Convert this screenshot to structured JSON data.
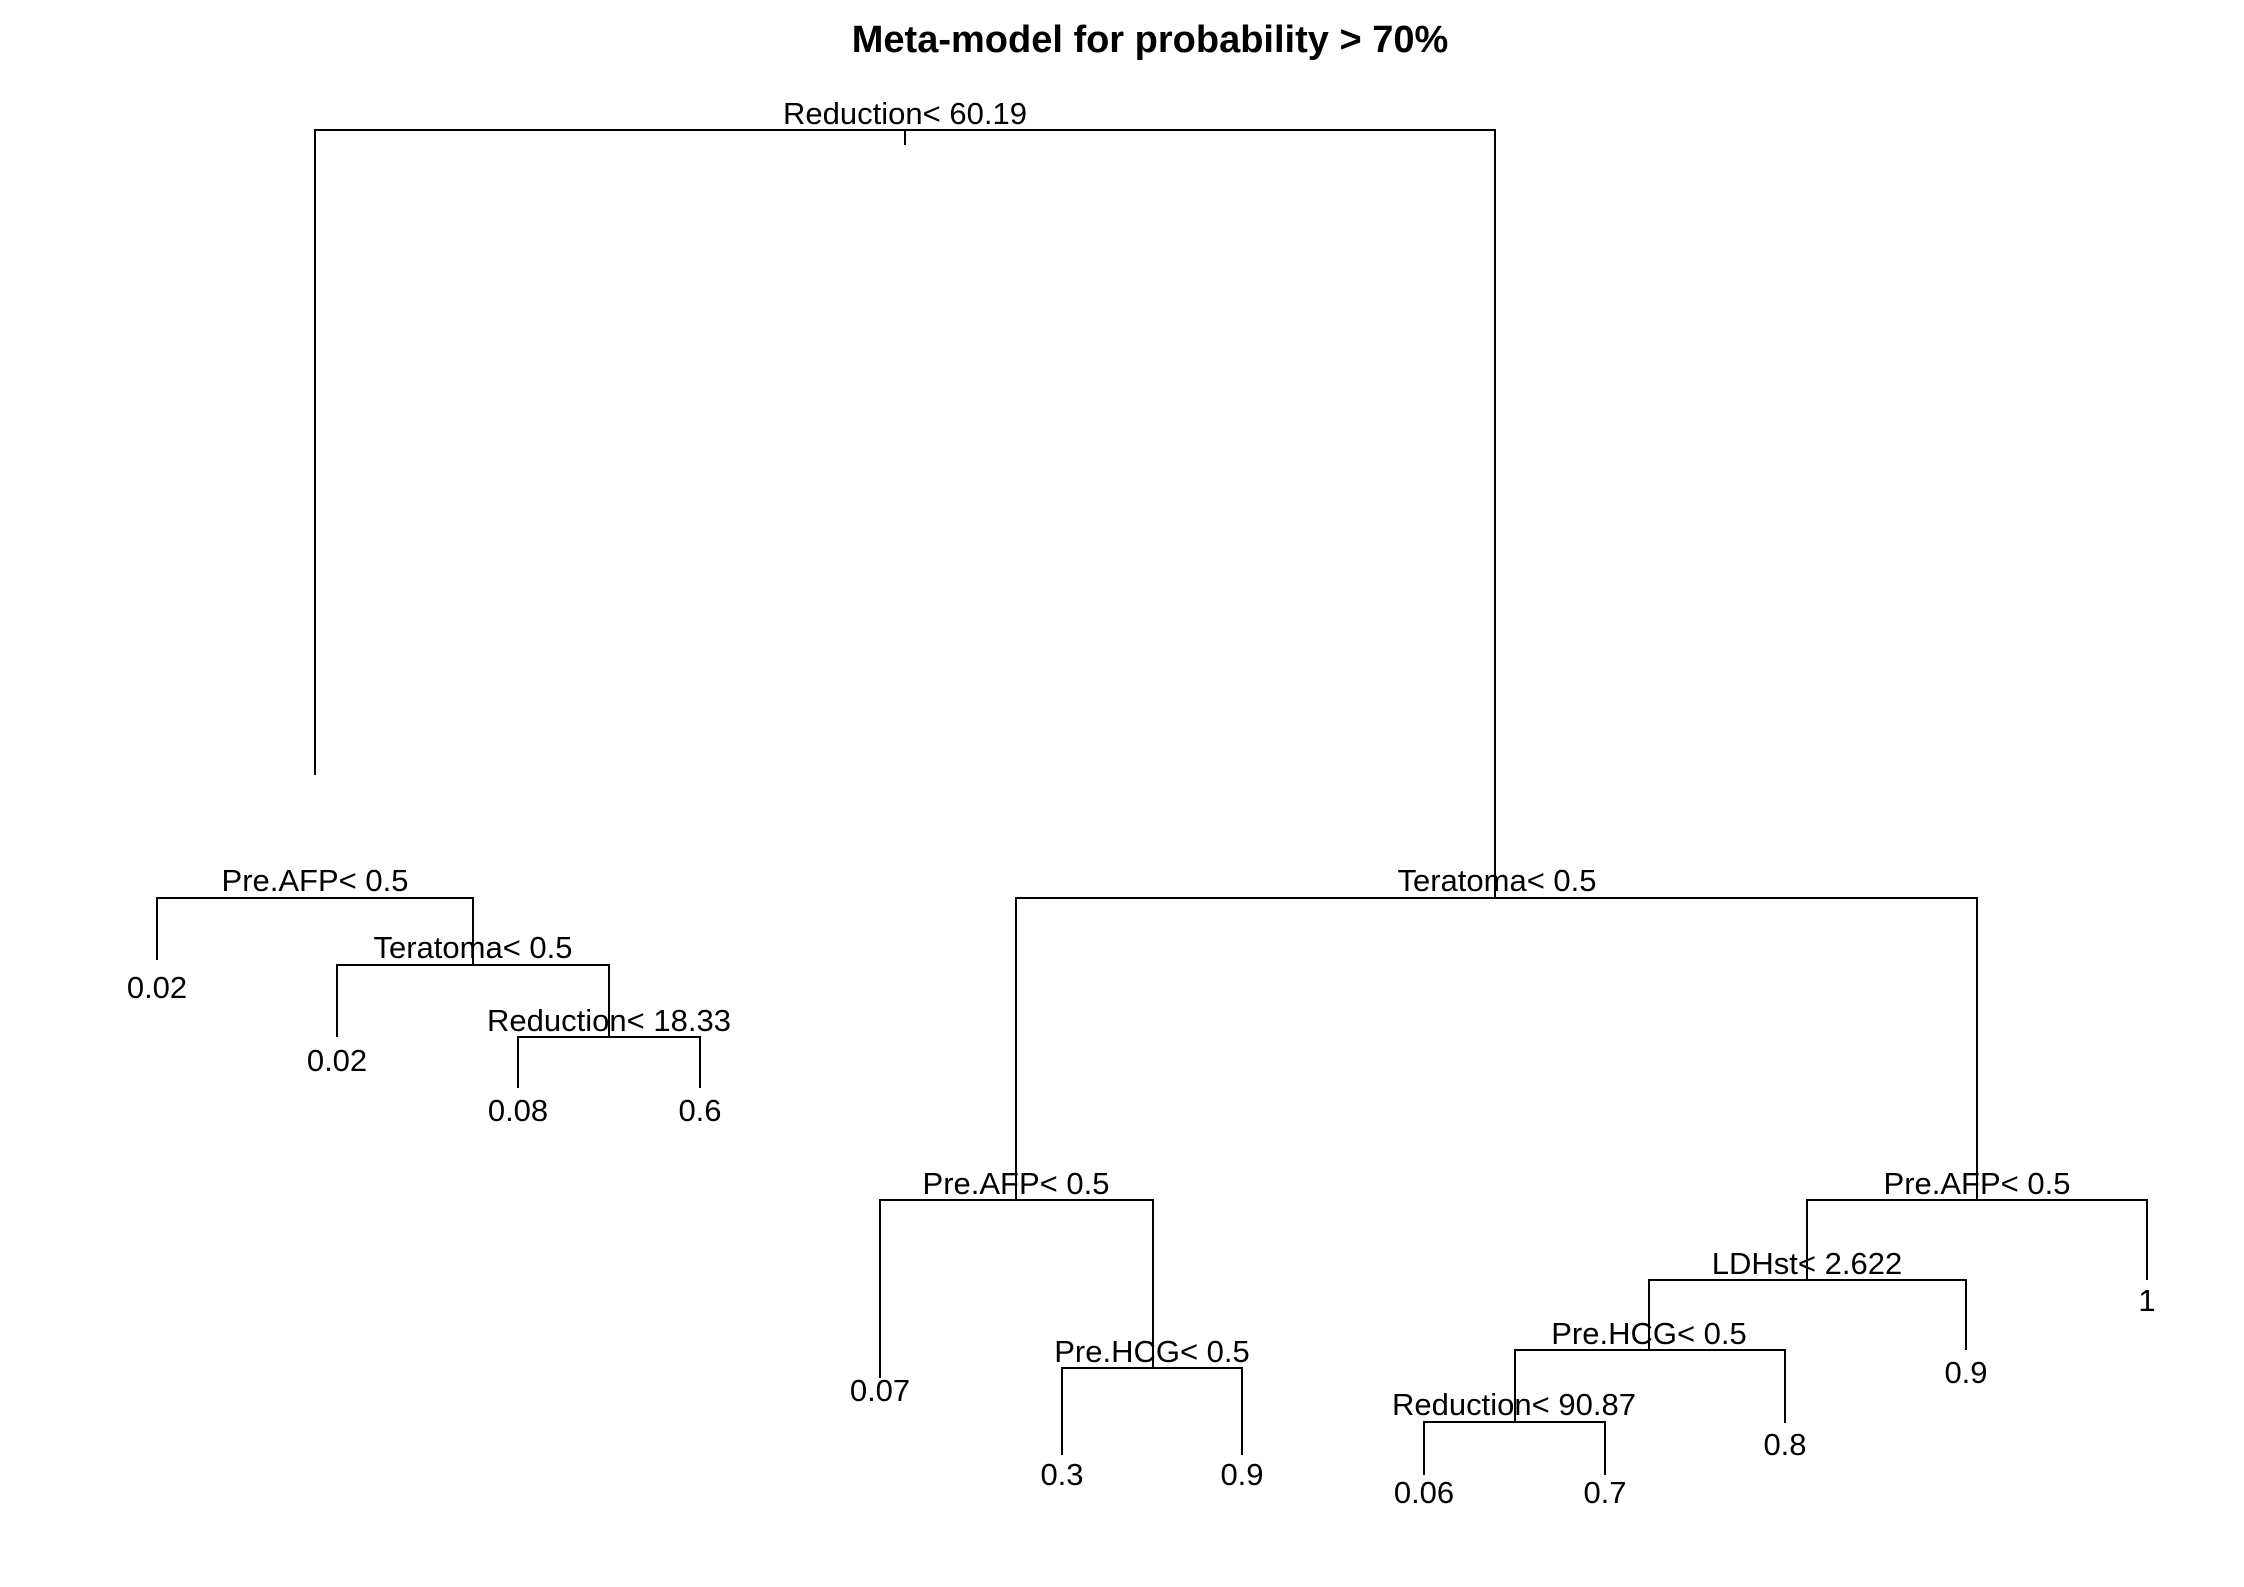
{
  "title": "Meta-model for probability > 70%",
  "tree": {
    "root": {
      "split": "Reduction< 60.19",
      "left": {
        "split": "Pre.AFP< 0.5",
        "left_leaf": "0.02",
        "right": {
          "split": "Teratoma< 0.5",
          "left_leaf": "0.02",
          "right": {
            "split": "Reduction< 18.33",
            "left_leaf": "0.08",
            "right_leaf": "0.6"
          }
        }
      },
      "right": {
        "split": "Teratoma< 0.5",
        "left": {
          "split": "Pre.AFP< 0.5",
          "left_leaf": "0.07",
          "right": {
            "split": "Pre.HCG< 0.5",
            "left_leaf": "0.3",
            "right_leaf": "0.9"
          }
        },
        "right": {
          "split": "Pre.AFP< 0.5",
          "left": {
            "split": "LDHst< 2.622",
            "left": {
              "split": "Pre.HCG< 0.5",
              "left": {
                "split": "Reduction< 90.87",
                "left_leaf": "0.06",
                "right_leaf": "0.7"
              },
              "right_leaf": "0.8"
            },
            "right_leaf": "0.9"
          },
          "right_leaf": "1"
        }
      }
    }
  }
}
